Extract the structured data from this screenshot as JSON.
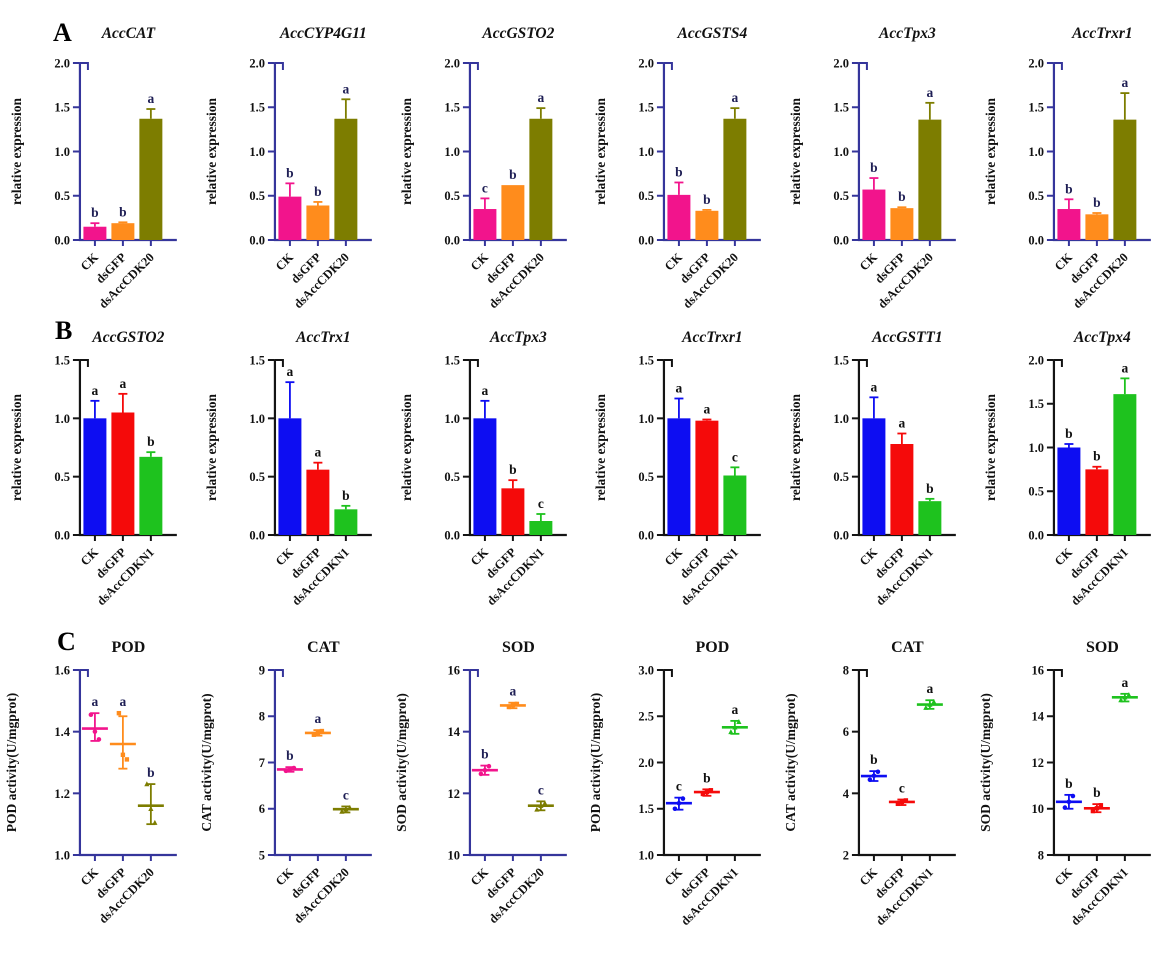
{
  "figure": {
    "panels": [
      {
        "label": "A"
      },
      {
        "label": "B"
      },
      {
        "label": "C"
      }
    ],
    "colors": {
      "pink": "#F2148C",
      "orange": "#FF8C1C",
      "olive": "#7D7D00",
      "blue": "#0D0DF2",
      "red": "#F50A0A",
      "green": "#1EC21E",
      "axis_navy": "#35359B",
      "axis_black": "#141414"
    }
  },
  "chart_data": [
    {
      "row": "A",
      "type": "bar",
      "title": "AccCAT",
      "italic_title": true,
      "ylabel": "relative expression",
      "ylim": [
        0,
        2
      ],
      "yticks": [
        "0.0",
        "0.5",
        "1.0",
        "1.5",
        "2.0"
      ],
      "categories": [
        "CK",
        "dsGFP",
        "dsAccCDK20"
      ],
      "values": [
        0.15,
        0.19,
        1.37
      ],
      "errors": [
        0.04,
        0.01,
        0.11
      ],
      "sig": [
        "b",
        "b",
        "a"
      ],
      "colors": [
        "#F2148C",
        "#FF8C1C",
        "#7D7D00"
      ],
      "axis_color": "#35359B",
      "sig_color": "#1F1F55"
    },
    {
      "row": "A",
      "type": "bar",
      "title": "AccCYP4G11",
      "italic_title": true,
      "ylabel": "relative expression",
      "ylim": [
        0,
        2
      ],
      "yticks": [
        "0.0",
        "0.5",
        "1.0",
        "1.5",
        "2.0"
      ],
      "categories": [
        "CK",
        "dsGFP",
        "dsAccCDK20"
      ],
      "values": [
        0.49,
        0.39,
        1.37
      ],
      "errors": [
        0.15,
        0.04,
        0.22
      ],
      "sig": [
        "b",
        "b",
        "a"
      ],
      "colors": [
        "#F2148C",
        "#FF8C1C",
        "#7D7D00"
      ],
      "axis_color": "#35359B",
      "sig_color": "#1F1F55"
    },
    {
      "row": "A",
      "type": "bar",
      "title": "AccGSTO2",
      "italic_title": true,
      "ylabel": "relative expression",
      "ylim": [
        0,
        2
      ],
      "yticks": [
        "0.0",
        "0.5",
        "1.0",
        "1.5",
        "2.0"
      ],
      "categories": [
        "CK",
        "dsGFP",
        "dsAccCDK20"
      ],
      "values": [
        0.35,
        0.62,
        1.37
      ],
      "errors": [
        0.12,
        0.0,
        0.12
      ],
      "sig": [
        "c",
        "b",
        "a"
      ],
      "colors": [
        "#F2148C",
        "#FF8C1C",
        "#7D7D00"
      ],
      "axis_color": "#35359B",
      "sig_color": "#1F1F55"
    },
    {
      "row": "A",
      "type": "bar",
      "title": "AccGSTS4",
      "italic_title": true,
      "ylabel": "relative expression",
      "ylim": [
        0,
        2
      ],
      "yticks": [
        "0.0",
        "0.5",
        "1.0",
        "1.5",
        "2.0"
      ],
      "categories": [
        "CK",
        "dsGFP",
        "dsAccCDK20"
      ],
      "values": [
        0.51,
        0.33,
        1.37
      ],
      "errors": [
        0.14,
        0.01,
        0.12
      ],
      "sig": [
        "b",
        "b",
        "a"
      ],
      "colors": [
        "#F2148C",
        "#FF8C1C",
        "#7D7D00"
      ],
      "axis_color": "#35359B",
      "sig_color": "#1F1F55"
    },
    {
      "row": "A",
      "type": "bar",
      "title": "AccTpx3",
      "italic_title": true,
      "ylabel": "relative expression",
      "ylim": [
        0,
        2
      ],
      "yticks": [
        "0.0",
        "0.5",
        "1.0",
        "1.5",
        "2.0"
      ],
      "categories": [
        "CK",
        "dsGFP",
        "dsAccCDK20"
      ],
      "values": [
        0.57,
        0.36,
        1.36
      ],
      "errors": [
        0.13,
        0.01,
        0.19
      ],
      "sig": [
        "b",
        "b",
        "a"
      ],
      "colors": [
        "#F2148C",
        "#FF8C1C",
        "#7D7D00"
      ],
      "axis_color": "#35359B",
      "sig_color": "#1F1F55"
    },
    {
      "row": "A",
      "type": "bar",
      "title": "AccTrxr1",
      "italic_title": true,
      "ylabel": "relative expression",
      "ylim": [
        0,
        2
      ],
      "yticks": [
        "0.0",
        "0.5",
        "1.0",
        "1.5",
        "2.0"
      ],
      "categories": [
        "CK",
        "dsGFP",
        "dsAccCDK20"
      ],
      "values": [
        0.35,
        0.29,
        1.36
      ],
      "errors": [
        0.11,
        0.015,
        0.3
      ],
      "sig": [
        "b",
        "b",
        "a"
      ],
      "colors": [
        "#F2148C",
        "#FF8C1C",
        "#7D7D00"
      ],
      "axis_color": "#35359B",
      "sig_color": "#1F1F55"
    },
    {
      "row": "B",
      "type": "bar",
      "title": "AccGSTO2",
      "italic_title": true,
      "ylabel": "relative expression",
      "ylim": [
        0,
        1.5
      ],
      "yticks": [
        "0.0",
        "0.5",
        "1.0",
        "1.5"
      ],
      "categories": [
        "CK",
        "dsGFP",
        "dsAccCDKN1"
      ],
      "values": [
        1.0,
        1.05,
        0.67
      ],
      "errors": [
        0.15,
        0.16,
        0.04
      ],
      "sig": [
        "a",
        "a",
        "b"
      ],
      "colors": [
        "#0D0DF2",
        "#F50A0A",
        "#1EC21E"
      ],
      "axis_color": "#141414",
      "sig_color": "#111111"
    },
    {
      "row": "B",
      "type": "bar",
      "title": "AccTrx1",
      "italic_title": true,
      "ylabel": "relative expression",
      "ylim": [
        0,
        1.5
      ],
      "yticks": [
        "0.0",
        "0.5",
        "1.0",
        "1.5"
      ],
      "categories": [
        "CK",
        "dsGFP",
        "dsAccCDKN1"
      ],
      "values": [
        1.0,
        0.56,
        0.22
      ],
      "errors": [
        0.31,
        0.06,
        0.03
      ],
      "sig": [
        "a",
        "a",
        "b"
      ],
      "colors": [
        "#0D0DF2",
        "#F50A0A",
        "#1EC21E"
      ],
      "axis_color": "#141414",
      "sig_color": "#111111"
    },
    {
      "row": "B",
      "type": "bar",
      "title": "AccTpx3",
      "italic_title": true,
      "ylabel": "relative expression",
      "ylim": [
        0,
        1.5
      ],
      "yticks": [
        "0.0",
        "0.5",
        "1.0",
        "1.5"
      ],
      "categories": [
        "CK",
        "dsGFP",
        "dsAccCDKN1"
      ],
      "values": [
        1.0,
        0.4,
        0.12
      ],
      "errors": [
        0.15,
        0.07,
        0.06
      ],
      "sig": [
        "a",
        "b",
        "c"
      ],
      "colors": [
        "#0D0DF2",
        "#F50A0A",
        "#1EC21E"
      ],
      "axis_color": "#141414",
      "sig_color": "#111111"
    },
    {
      "row": "B",
      "type": "bar",
      "title": "AccTrxr1",
      "italic_title": true,
      "ylabel": "relative expression",
      "ylim": [
        0,
        1.5
      ],
      "yticks": [
        "0.0",
        "0.5",
        "1.0",
        "1.5"
      ],
      "categories": [
        "CK",
        "dsGFP",
        "dsAccCDKN1"
      ],
      "values": [
        1.0,
        0.98,
        0.51
      ],
      "errors": [
        0.17,
        0.01,
        0.07
      ],
      "sig": [
        "a",
        "a",
        "c"
      ],
      "colors": [
        "#0D0DF2",
        "#F50A0A",
        "#1EC21E"
      ],
      "axis_color": "#141414",
      "sig_color": "#111111"
    },
    {
      "row": "B",
      "type": "bar",
      "title": "AccGSTT1",
      "italic_title": true,
      "ylabel": "relative expression",
      "ylim": [
        0,
        1.5
      ],
      "yticks": [
        "0.0",
        "0.5",
        "1.0",
        "1.5"
      ],
      "categories": [
        "CK",
        "dsGFP",
        "dsAccCDKN1"
      ],
      "values": [
        1.0,
        0.78,
        0.29
      ],
      "errors": [
        0.18,
        0.09,
        0.02
      ],
      "sig": [
        "a",
        "a",
        "b"
      ],
      "colors": [
        "#0D0DF2",
        "#F50A0A",
        "#1EC21E"
      ],
      "axis_color": "#141414",
      "sig_color": "#111111"
    },
    {
      "row": "B",
      "type": "bar",
      "title": "AccTpx4",
      "italic_title": true,
      "ylabel": "relative expression",
      "ylim": [
        0,
        2
      ],
      "yticks": [
        "0.0",
        "0.5",
        "1.0",
        "1.5",
        "2.0"
      ],
      "categories": [
        "CK",
        "dsGFP",
        "dsAccCDKN1"
      ],
      "values": [
        1.0,
        0.75,
        1.61
      ],
      "errors": [
        0.04,
        0.03,
        0.18
      ],
      "sig": [
        "b",
        "b",
        "a"
      ],
      "colors": [
        "#0D0DF2",
        "#F50A0A",
        "#1EC21E"
      ],
      "axis_color": "#141414",
      "sig_color": "#111111"
    },
    {
      "row": "C",
      "type": "scatter",
      "title": "POD",
      "italic_title": false,
      "ylabel": "POD activity(U/mgprot)",
      "ylim": [
        1.0,
        1.6
      ],
      "yticks": [
        "1.0",
        "1.2",
        "1.4",
        "1.6"
      ],
      "categories": [
        "CK",
        "dsGFP",
        "dsAccCDK20"
      ],
      "means": [
        1.41,
        1.36,
        1.16
      ],
      "whisker_low": [
        1.37,
        1.28,
        1.1
      ],
      "whisker_high": [
        1.46,
        1.45,
        1.23
      ],
      "points": [
        [
          1.455,
          1.4,
          1.375
        ],
        [
          1.46,
          1.325,
          1.31
        ],
        [
          1.23,
          1.15,
          1.105
        ]
      ],
      "sig": [
        "a",
        "a",
        "b"
      ],
      "colors": [
        "#F2148C",
        "#FF8C1C",
        "#7D7D00"
      ],
      "axis_color": "#35359B",
      "sig_color": "#1F1F55"
    },
    {
      "row": "C",
      "type": "scatter",
      "title": "CAT",
      "italic_title": false,
      "ylabel": "CAT activity(U/mgprot)",
      "ylim": [
        5,
        9
      ],
      "yticks": [
        "5",
        "6",
        "7",
        "8",
        "9"
      ],
      "categories": [
        "CK",
        "dsGFP",
        "dsAccCDK20"
      ],
      "means": [
        6.85,
        7.64,
        5.99
      ],
      "whisker_low": [
        6.8,
        7.58,
        5.92
      ],
      "whisker_high": [
        6.9,
        7.7,
        6.05
      ],
      "points": [
        [
          6.82,
          6.85,
          6.88
        ],
        [
          7.6,
          7.64,
          7.68
        ],
        [
          5.94,
          5.99,
          6.02
        ]
      ],
      "sig": [
        "b",
        "a",
        "c"
      ],
      "colors": [
        "#F2148C",
        "#FF8C1C",
        "#7D7D00"
      ],
      "axis_color": "#35359B",
      "sig_color": "#1F1F55"
    },
    {
      "row": "C",
      "type": "scatter",
      "title": "SOD",
      "italic_title": false,
      "ylabel": "SOD activity(U/mgprot)",
      "ylim": [
        10,
        16
      ],
      "yticks": [
        "10",
        "12",
        "14",
        "16"
      ],
      "categories": [
        "CK",
        "dsGFP",
        "dsAccCDK20"
      ],
      "means": [
        12.75,
        14.85,
        11.6
      ],
      "whisker_low": [
        12.6,
        14.76,
        11.45
      ],
      "whisker_high": [
        12.9,
        14.94,
        11.74
      ],
      "points": [
        [
          12.63,
          12.75,
          12.88
        ],
        [
          14.8,
          14.86,
          14.9
        ],
        [
          11.48,
          11.6,
          11.68
        ]
      ],
      "sig": [
        "b",
        "a",
        "c"
      ],
      "colors": [
        "#F2148C",
        "#FF8C1C",
        "#7D7D00"
      ],
      "axis_color": "#35359B",
      "sig_color": "#1F1F55"
    },
    {
      "row": "C",
      "type": "scatter",
      "title": "POD",
      "italic_title": false,
      "ylabel": "POD activity(U/mgprot)",
      "ylim": [
        1.0,
        3.0
      ],
      "yticks": [
        "1.0",
        "1.5",
        "2.0",
        "2.5",
        "3.0"
      ],
      "categories": [
        "CK",
        "dsGFP",
        "dsAccCDKN1"
      ],
      "means": [
        1.56,
        1.68,
        2.38
      ],
      "whisker_low": [
        1.49,
        1.64,
        2.31
      ],
      "whisker_high": [
        1.62,
        1.71,
        2.45
      ],
      "points": [
        [
          1.5,
          1.56,
          1.61
        ],
        [
          1.66,
          1.68,
          1.7
        ],
        [
          2.33,
          2.38,
          2.44
        ]
      ],
      "sig": [
        "c",
        "b",
        "a"
      ],
      "colors": [
        "#0D0DF2",
        "#F50A0A",
        "#1EC21E"
      ],
      "axis_color": "#141414",
      "sig_color": "#111111"
    },
    {
      "row": "C",
      "type": "scatter",
      "title": "CAT",
      "italic_title": false,
      "ylabel": "CAT activity(U/mgprot)",
      "ylim": [
        2,
        8
      ],
      "yticks": [
        "2",
        "4",
        "6",
        "8"
      ],
      "categories": [
        "CK",
        "dsGFP",
        "dsAccCDKN1"
      ],
      "means": [
        4.56,
        3.72,
        6.88
      ],
      "whisker_low": [
        4.4,
        3.62,
        6.74
      ],
      "whisker_high": [
        4.72,
        3.8,
        7.02
      ],
      "points": [
        [
          4.44,
          4.57,
          4.7
        ],
        [
          3.66,
          3.72,
          3.77
        ],
        [
          6.78,
          6.88,
          6.97
        ]
      ],
      "sig": [
        "b",
        "c",
        "a"
      ],
      "colors": [
        "#0D0DF2",
        "#F50A0A",
        "#1EC21E"
      ],
      "axis_color": "#141414",
      "sig_color": "#111111"
    },
    {
      "row": "C",
      "type": "scatter",
      "title": "SOD",
      "italic_title": false,
      "ylabel": "SOD activity(U/mgprot)",
      "ylim": [
        8,
        16
      ],
      "yticks": [
        "8",
        "10",
        "12",
        "14",
        "16"
      ],
      "categories": [
        "CK",
        "dsGFP",
        "dsAccCDKN1"
      ],
      "means": [
        10.3,
        10.02,
        14.82
      ],
      "whisker_low": [
        10.0,
        9.85,
        14.64
      ],
      "whisker_high": [
        10.6,
        10.2,
        14.97
      ],
      "points": [
        [
          10.05,
          10.3,
          10.55
        ],
        [
          9.9,
          10.02,
          10.15
        ],
        [
          14.7,
          14.82,
          14.92
        ]
      ],
      "sig": [
        "b",
        "b",
        "a"
      ],
      "colors": [
        "#0D0DF2",
        "#F50A0A",
        "#1EC21E"
      ],
      "axis_color": "#141414",
      "sig_color": "#111111"
    }
  ]
}
